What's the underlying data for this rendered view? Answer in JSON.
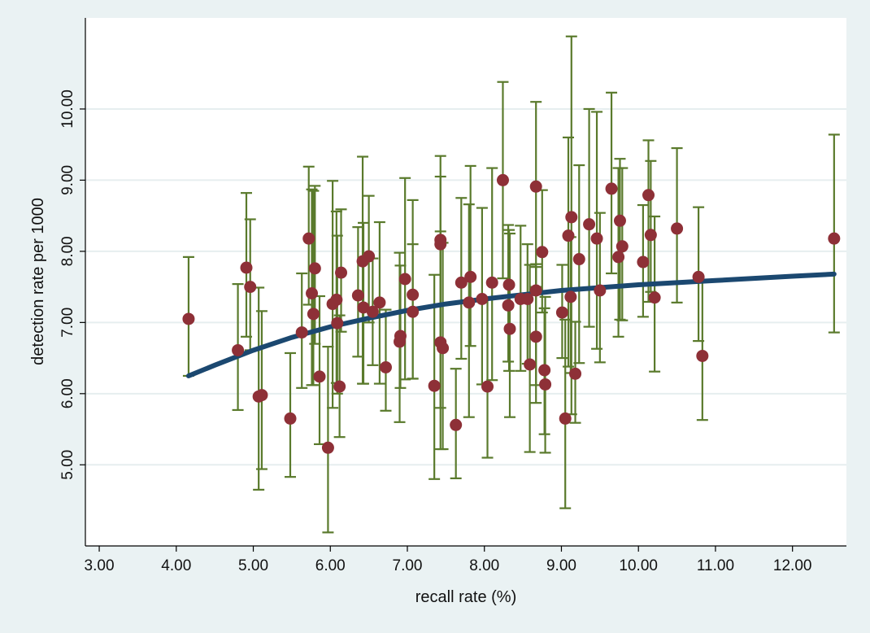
{
  "chart_data": {
    "type": "scatter",
    "title": "",
    "xlabel": "recall rate (%)",
    "ylabel": "detection rate per 1000",
    "xlim": [
      2.82,
      12.7
    ],
    "ylim": [
      3.86,
      11.28
    ],
    "xticks": [
      "3.00",
      "4.00",
      "5.00",
      "6.00",
      "7.00",
      "8.00",
      "9.00",
      "10.00",
      "11.00",
      "12.00"
    ],
    "yticks": [
      "5.00",
      "6.00",
      "7.00",
      "8.00",
      "9.00",
      "10.00"
    ],
    "grid": "horizontal",
    "legend": "none",
    "colors": {
      "background": "#eaf2f3",
      "plot": "#ffffff",
      "point": "#8e3037",
      "errorbar": "#5a7a2c",
      "fit": "#1b4870",
      "grid": "#e6eeef"
    },
    "points": [
      {
        "x": 4.16,
        "y": 7.05,
        "lo": 6.25,
        "hi": 7.92
      },
      {
        "x": 4.8,
        "y": 6.61,
        "lo": 5.77,
        "hi": 7.54
      },
      {
        "x": 4.91,
        "y": 7.77,
        "lo": 6.8,
        "hi": 8.82
      },
      {
        "x": 4.96,
        "y": 7.5,
        "lo": 6.61,
        "hi": 8.45
      },
      {
        "x": 5.07,
        "y": 5.96,
        "lo": 4.65,
        "hi": 7.49
      },
      {
        "x": 5.11,
        "y": 5.98,
        "lo": 4.94,
        "hi": 7.16
      },
      {
        "x": 5.48,
        "y": 5.65,
        "lo": 4.83,
        "hi": 6.57
      },
      {
        "x": 5.63,
        "y": 6.86,
        "lo": 6.08,
        "hi": 7.69
      },
      {
        "x": 5.72,
        "y": 8.18,
        "lo": 7.25,
        "hi": 9.19
      },
      {
        "x": 5.76,
        "y": 7.41,
        "lo": 6.12,
        "hi": 8.87
      },
      {
        "x": 5.78,
        "y": 7.12,
        "lo": 6.12,
        "hi": 8.85
      },
      {
        "x": 5.8,
        "y": 7.76,
        "lo": 6.7,
        "hi": 8.92
      },
      {
        "x": 5.86,
        "y": 6.24,
        "lo": 5.29,
        "hi": 7.37
      },
      {
        "x": 5.97,
        "y": 5.24,
        "lo": 4.05,
        "hi": 6.66
      },
      {
        "x": 6.03,
        "y": 7.26,
        "lo": 5.8,
        "hi": 8.99
      },
      {
        "x": 6.08,
        "y": 7.32,
        "lo": 6.15,
        "hi": 8.56
      },
      {
        "x": 6.09,
        "y": 6.99,
        "lo": 6.0,
        "hi": 8.22
      },
      {
        "x": 6.12,
        "y": 6.1,
        "lo": 5.39,
        "hi": 7.1
      },
      {
        "x": 6.14,
        "y": 7.7,
        "lo": 6.87,
        "hi": 8.59
      },
      {
        "x": 6.36,
        "y": 7.38,
        "lo": 6.52,
        "hi": 8.34
      },
      {
        "x": 6.42,
        "y": 7.86,
        "lo": 6.14,
        "hi": 9.33
      },
      {
        "x": 6.43,
        "y": 7.21,
        "lo": 6.14,
        "hi": 8.4
      },
      {
        "x": 6.5,
        "y": 7.93,
        "lo": 7.0,
        "hi": 8.78
      },
      {
        "x": 6.55,
        "y": 7.15,
        "lo": 6.4,
        "hi": 7.9
      },
      {
        "x": 6.64,
        "y": 7.28,
        "lo": 6.14,
        "hi": 8.41
      },
      {
        "x": 6.72,
        "y": 6.37,
        "lo": 5.76,
        "hi": 7.18
      },
      {
        "x": 6.9,
        "y": 6.73,
        "lo": 5.6,
        "hi": 7.98
      },
      {
        "x": 6.91,
        "y": 6.81,
        "lo": 6.08,
        "hi": 7.8
      },
      {
        "x": 6.97,
        "y": 7.61,
        "lo": 6.2,
        "hi": 9.03
      },
      {
        "x": 7.07,
        "y": 7.15,
        "lo": 6.21,
        "hi": 8.72
      },
      {
        "x": 7.07,
        "y": 7.39,
        "lo": 6.21,
        "hi": 8.1
      },
      {
        "x": 7.35,
        "y": 6.11,
        "lo": 4.8,
        "hi": 7.67
      },
      {
        "x": 7.43,
        "y": 8.16,
        "lo": 6.75,
        "hi": 9.34
      },
      {
        "x": 7.43,
        "y": 8.1,
        "lo": 5.8,
        "hi": 9.05
      },
      {
        "x": 7.43,
        "y": 6.72,
        "lo": 5.22,
        "hi": 8.28
      },
      {
        "x": 7.46,
        "y": 6.64,
        "lo": 5.22,
        "hi": 8.12
      },
      {
        "x": 7.63,
        "y": 5.56,
        "lo": 4.81,
        "hi": 6.35
      },
      {
        "x": 7.7,
        "y": 7.56,
        "lo": 6.49,
        "hi": 8.75
      },
      {
        "x": 7.8,
        "y": 7.28,
        "lo": 5.67,
        "hi": 8.66
      },
      {
        "x": 7.82,
        "y": 7.64,
        "lo": 6.67,
        "hi": 9.2
      },
      {
        "x": 7.97,
        "y": 7.33,
        "lo": 6.13,
        "hi": 8.61
      },
      {
        "x": 8.04,
        "y": 6.1,
        "lo": 5.1,
        "hi": 7.35
      },
      {
        "x": 8.1,
        "y": 7.56,
        "lo": 6.19,
        "hi": 9.17
      },
      {
        "x": 8.24,
        "y": 9.0,
        "lo": 7.62,
        "hi": 10.38
      },
      {
        "x": 8.31,
        "y": 7.24,
        "lo": 6.45,
        "hi": 8.37
      },
      {
        "x": 8.32,
        "y": 7.53,
        "lo": 6.32,
        "hi": 8.3
      },
      {
        "x": 8.33,
        "y": 6.91,
        "lo": 5.67,
        "hi": 8.25
      },
      {
        "x": 8.47,
        "y": 7.33,
        "lo": 6.32,
        "hi": 8.36
      },
      {
        "x": 8.56,
        "y": 7.33,
        "lo": 6.42,
        "hi": 8.1
      },
      {
        "x": 8.59,
        "y": 6.41,
        "lo": 5.18,
        "hi": 7.81
      },
      {
        "x": 8.67,
        "y": 8.91,
        "lo": 7.5,
        "hi": 10.1
      },
      {
        "x": 8.67,
        "y": 7.45,
        "lo": 6.12,
        "hi": 7.82
      },
      {
        "x": 8.67,
        "y": 6.8,
        "lo": 5.87,
        "hi": 7.78
      },
      {
        "x": 8.75,
        "y": 7.99,
        "lo": 7.14,
        "hi": 8.86
      },
      {
        "x": 8.78,
        "y": 6.33,
        "lo": 5.43,
        "hi": 7.2
      },
      {
        "x": 8.79,
        "y": 6.13,
        "lo": 5.17,
        "hi": 7.36
      },
      {
        "x": 9.01,
        "y": 7.14,
        "lo": 6.5,
        "hi": 7.81
      },
      {
        "x": 9.05,
        "y": 5.65,
        "lo": 4.39,
        "hi": 7.04
      },
      {
        "x": 9.09,
        "y": 8.22,
        "lo": 6.38,
        "hi": 9.6
      },
      {
        "x": 9.12,
        "y": 7.36,
        "lo": 6.29,
        "hi": 8.2
      },
      {
        "x": 9.13,
        "y": 8.48,
        "lo": 5.71,
        "hi": 11.02
      },
      {
        "x": 9.18,
        "y": 6.28,
        "lo": 5.59,
        "hi": 7.01
      },
      {
        "x": 9.23,
        "y": 7.89,
        "lo": 6.43,
        "hi": 9.21
      },
      {
        "x": 9.36,
        "y": 8.38,
        "lo": 6.94,
        "hi": 10.0
      },
      {
        "x": 9.46,
        "y": 8.18,
        "lo": 6.63,
        "hi": 9.96
      },
      {
        "x": 9.5,
        "y": 7.45,
        "lo": 6.44,
        "hi": 8.54
      },
      {
        "x": 9.65,
        "y": 8.88,
        "lo": 7.69,
        "hi": 10.23
      },
      {
        "x": 9.74,
        "y": 7.92,
        "lo": 6.8,
        "hi": 9.17
      },
      {
        "x": 9.76,
        "y": 8.43,
        "lo": 7.04,
        "hi": 9.3
      },
      {
        "x": 9.79,
        "y": 8.07,
        "lo": 7.03,
        "hi": 9.17
      },
      {
        "x": 10.06,
        "y": 7.85,
        "lo": 7.08,
        "hi": 8.65
      },
      {
        "x": 10.13,
        "y": 8.79,
        "lo": 7.29,
        "hi": 9.56
      },
      {
        "x": 10.16,
        "y": 8.23,
        "lo": 7.43,
        "hi": 9.27
      },
      {
        "x": 10.21,
        "y": 7.35,
        "lo": 6.31,
        "hi": 8.49
      },
      {
        "x": 10.5,
        "y": 8.32,
        "lo": 7.28,
        "hi": 9.45
      },
      {
        "x": 10.78,
        "y": 7.64,
        "lo": 6.74,
        "hi": 8.62
      },
      {
        "x": 10.83,
        "y": 6.53,
        "lo": 5.63,
        "hi": 7.57
      },
      {
        "x": 12.54,
        "y": 8.18,
        "lo": 6.86,
        "hi": 9.64
      }
    ],
    "fit_line": {
      "x": [
        4.16,
        4.5,
        5.0,
        5.5,
        6.0,
        6.5,
        7.0,
        7.5,
        8.0,
        8.5,
        9.0,
        9.5,
        10.0,
        10.5,
        11.0,
        11.5,
        12.0,
        12.54
      ],
      "y": [
        6.25,
        6.4,
        6.61,
        6.79,
        6.94,
        7.06,
        7.17,
        7.26,
        7.33,
        7.39,
        7.45,
        7.49,
        7.53,
        7.56,
        7.59,
        7.62,
        7.65,
        7.68
      ]
    }
  }
}
